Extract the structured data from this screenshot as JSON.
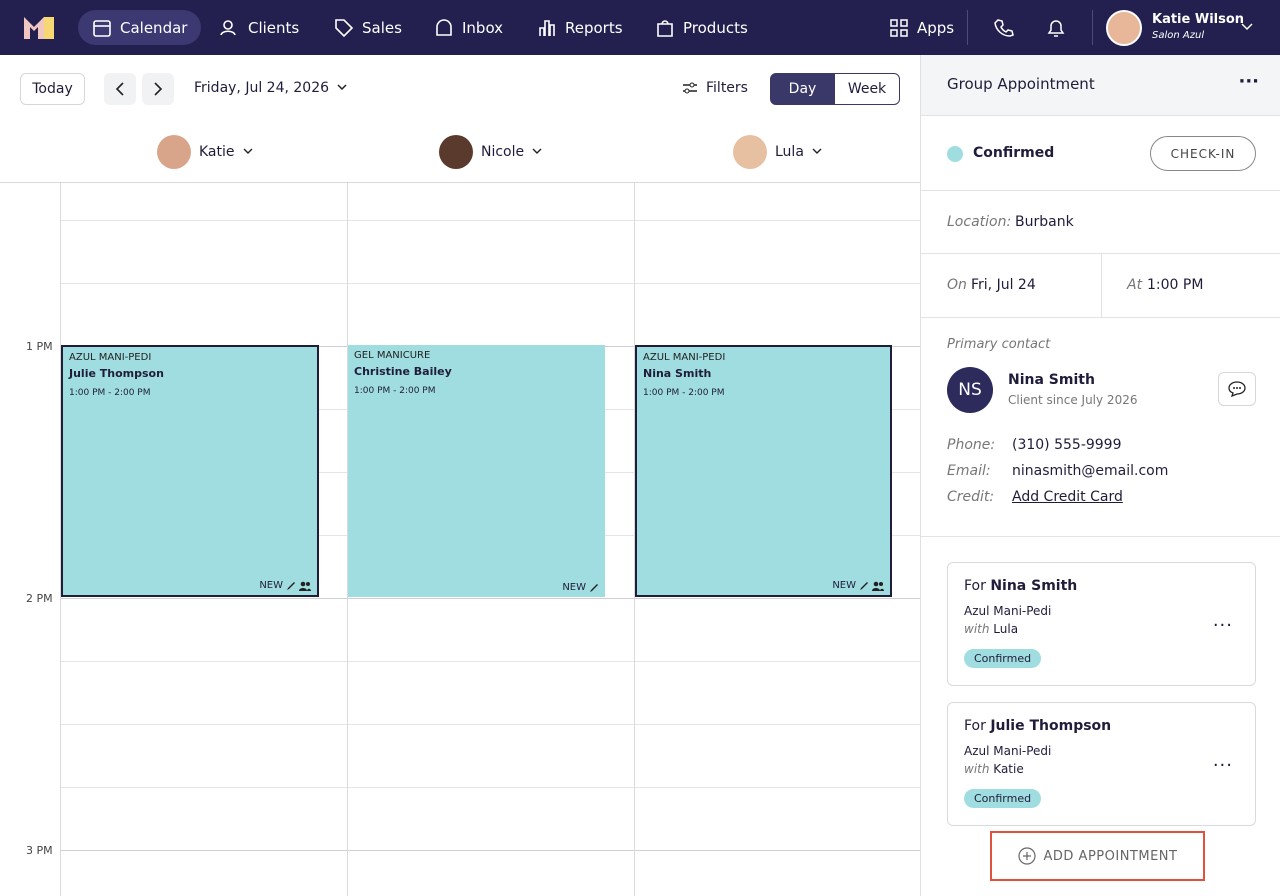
{
  "nav": {
    "items": [
      "Calendar",
      "Clients",
      "Sales",
      "Inbox",
      "Reports",
      "Products"
    ],
    "apps": "Apps",
    "user": {
      "name": "Katie Wilson",
      "salon": "Salon Azul"
    }
  },
  "toolbar": {
    "today": "Today",
    "date": "Friday, Jul 24, 2026",
    "filters": "Filters",
    "views": [
      "Day",
      "Week"
    ]
  },
  "staff": [
    "Katie",
    "Nicole",
    "Lula"
  ],
  "times": [
    "1 PM",
    "2 PM",
    "3 PM"
  ],
  "appointments": [
    {
      "service": "AZUL MANI-PEDI",
      "client": "Julie Thompson",
      "time": "1:00 PM - 2:00 PM",
      "badge": "NEW"
    },
    {
      "service": "GEL MANICURE",
      "client": "Christine Bailey",
      "time": "1:00 PM - 2:00 PM",
      "badge": "NEW"
    },
    {
      "service": "AZUL MANI-PEDI",
      "client": "Nina Smith",
      "time": "1:00 PM - 2:00 PM",
      "badge": "NEW"
    }
  ],
  "panel": {
    "title": "Group Appointment",
    "status": "Confirmed",
    "checkin": "CHECK-IN",
    "location_label": "Location:",
    "location": "Burbank",
    "on_label": "On",
    "date": "Fri, Jul 24",
    "at_label": "At",
    "time": "1:00 PM",
    "primary_label": "Primary contact",
    "contact": {
      "initials": "NS",
      "name": "Nina Smith",
      "since": "Client since July 2026"
    },
    "fields": [
      {
        "label": "Phone:",
        "value": "(310) 555-9999"
      },
      {
        "label": "Email:",
        "value": "ninasmith@email.com"
      },
      {
        "label": "Credit:",
        "value": "Add Credit Card"
      }
    ],
    "bookings": [
      {
        "for": "For",
        "client": "Nina Smith",
        "service": "Azul Mani-Pedi",
        "with": "with",
        "staff": "Lula",
        "status": "Confirmed"
      },
      {
        "for": "For",
        "client": "Julie Thompson",
        "service": "Azul Mani-Pedi",
        "with": "with",
        "staff": "Katie",
        "status": "Confirmed"
      }
    ],
    "add": "ADD APPOINTMENT"
  }
}
